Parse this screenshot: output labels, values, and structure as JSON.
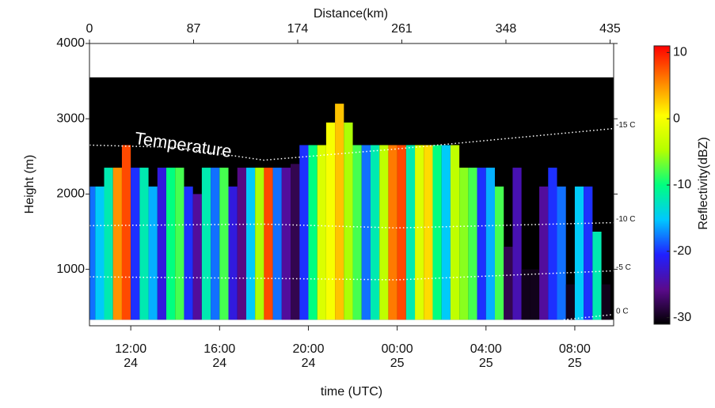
{
  "chart_data": {
    "type": "time-height",
    "xlabel": "time (UTC)",
    "ylabel": "Height (m)",
    "x2label": "Distance(km)",
    "colorbar_label": "Reflectivity(dBZ)",
    "annotation": "Temperature",
    "xlim": [
      10.14,
      33.75
    ],
    "xticks": [
      {
        "value": 12,
        "label": "12:00"
      },
      {
        "value": 16,
        "label": "16:00"
      },
      {
        "value": 20,
        "label": "20:00"
      },
      {
        "value": 24,
        "label": "00:00"
      },
      {
        "value": 28,
        "label": "04:00"
      },
      {
        "value": 32,
        "label": "08:00"
      }
    ],
    "xtick_days": [
      "24",
      "24",
      "24",
      "25",
      "25",
      "25"
    ],
    "x2lim": [
      0,
      438
    ],
    "x2ticks": [
      0,
      87,
      174,
      261,
      348,
      435
    ],
    "ylim": [
      250,
      4000
    ],
    "yticks": [
      1000,
      2000,
      3000,
      4000
    ],
    "zlim": [
      -31,
      11
    ],
    "zticks": [
      -30,
      -20,
      -10,
      0,
      10
    ],
    "colormap": [
      "#000000",
      "#5a0a8c",
      "#2020ff",
      "#00c8ff",
      "#00ff80",
      "#b4ff00",
      "#ffff00",
      "#ff8000",
      "#ff0000"
    ],
    "echo_region_top": 3550,
    "echo_base": 330,
    "x": [
      10.2,
      10.6,
      11.0,
      11.4,
      11.8,
      12.2,
      12.6,
      13.0,
      13.4,
      13.8,
      14.2,
      14.6,
      15.0,
      15.4,
      15.8,
      16.2,
      16.6,
      17.0,
      17.4,
      17.8,
      18.2,
      18.6,
      19.0,
      19.4,
      19.8,
      20.2,
      20.6,
      21.0,
      21.4,
      21.8,
      22.2,
      22.6,
      23.0,
      23.4,
      23.8,
      24.2,
      24.6,
      25.0,
      25.4,
      25.8,
      26.2,
      26.6,
      27.0,
      27.4,
      27.8,
      28.2,
      28.6,
      29.0,
      29.4,
      29.8,
      30.2,
      30.6,
      31.0,
      31.4,
      31.8,
      32.2,
      32.6,
      33.0,
      33.4
    ],
    "tops": [
      2100,
      2100,
      2350,
      2350,
      2650,
      2350,
      2350,
      2100,
      2350,
      2350,
      2350,
      2100,
      2000,
      2350,
      2350,
      2350,
      2100,
      2350,
      2350,
      2350,
      2350,
      2350,
      2350,
      2400,
      2650,
      2650,
      2650,
      2950,
      3200,
      2950,
      2650,
      2650,
      2650,
      2650,
      2650,
      2650,
      2650,
      2650,
      2650,
      2650,
      2650,
      2650,
      2350,
      2350,
      2350,
      2350,
      2100,
      1300,
      2350,
      1000,
      1000,
      2100,
      2350,
      2100,
      800,
      2100,
      2100,
      1500,
      800
    ],
    "values": [
      -18,
      -15,
      -12,
      5,
      8,
      -20,
      -12,
      -16,
      -22,
      -10,
      -8,
      -20,
      -25,
      -12,
      -18,
      -8,
      -22,
      -26,
      -15,
      -5,
      8,
      -18,
      -25,
      -28,
      -20,
      -10,
      -2,
      0,
      3,
      -5,
      -8,
      -18,
      -12,
      -4,
      6,
      8,
      -12,
      -2,
      2,
      -10,
      -15,
      -4,
      -6,
      -8,
      -20,
      -16,
      -8,
      -28,
      -24,
      -30,
      -30,
      -25,
      -20,
      -18,
      -30,
      -15,
      -20,
      -12,
      -30
    ],
    "isotherms": [
      {
        "name": "-15 C",
        "color": "#ffffff",
        "x": [
          10.14,
          14,
          18,
          24,
          33.75
        ],
        "values": [
          2650,
          2620,
          2450,
          2600,
          2870
        ]
      },
      {
        "name": "-10 C",
        "color": "#ffffff",
        "x": [
          10.14,
          18,
          24,
          33.75
        ],
        "values": [
          1580,
          1600,
          1550,
          1620
        ]
      },
      {
        "name": "-5 C",
        "color": "#ffffff",
        "x": [
          10.14,
          18,
          24,
          33.75
        ],
        "values": [
          900,
          880,
          860,
          980
        ]
      },
      {
        "name": "0 C",
        "color": "#ffffff",
        "x": [
          31.5,
          33.75
        ],
        "values": [
          330,
          400
        ]
      }
    ]
  }
}
